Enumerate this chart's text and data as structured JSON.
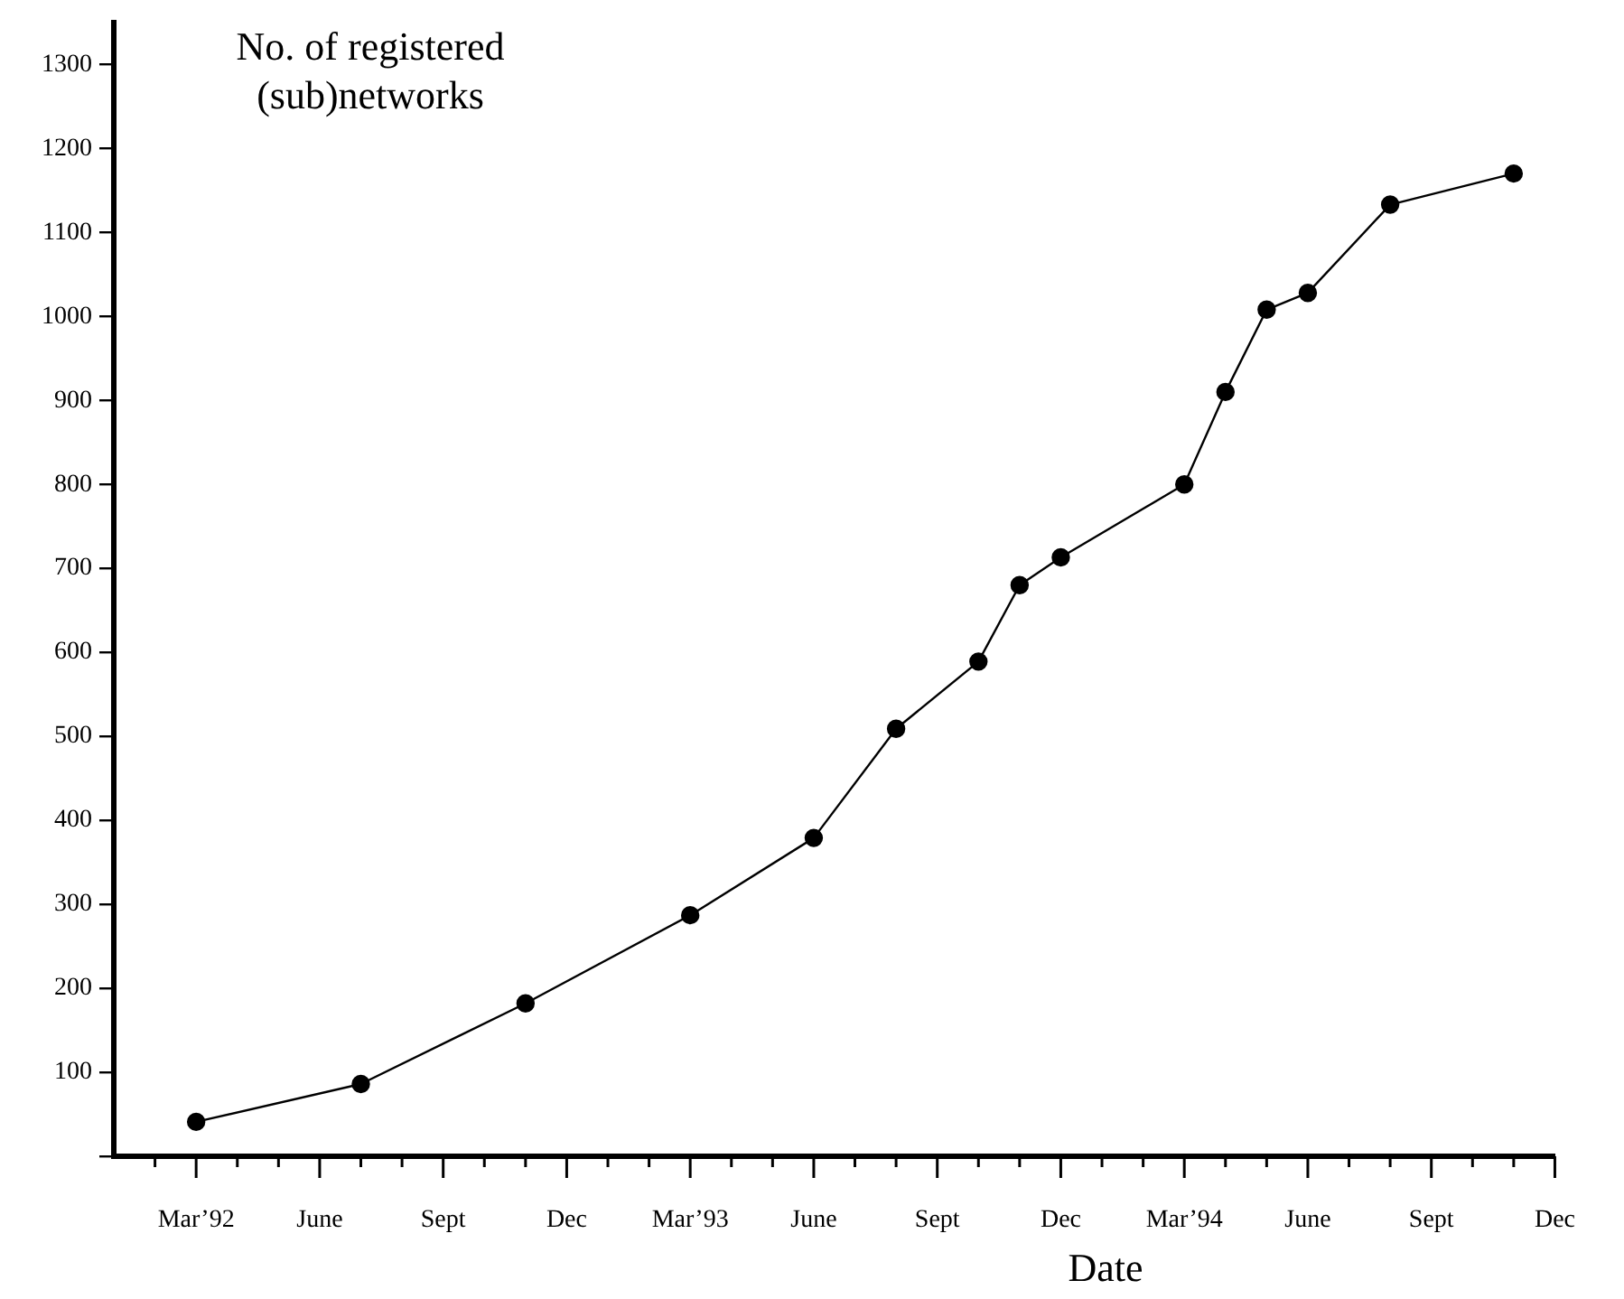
{
  "chart_data": {
    "type": "line",
    "ylabel": "No. of registered\n(sub)networks",
    "xlabel": "Date",
    "x": [
      "1992-03",
      "1992-07",
      "1992-11",
      "1993-03",
      "1993-06",
      "1993-08",
      "1993-10",
      "1993-11",
      "1993-12",
      "1994-03",
      "1994-04",
      "1994-05",
      "1994-06",
      "1994-08",
      "1994-11"
    ],
    "series": [
      {
        "color": "#000000",
        "values": [
          41,
          86,
          182,
          287,
          379,
          509,
          589,
          680,
          713,
          800,
          910,
          1008,
          1028,
          1133,
          1170
        ]
      }
    ],
    "xlim": [
      "1992-01",
      "1994-12"
    ],
    "xticks": [
      {
        "value": "1992-02",
        "label": null
      },
      {
        "value": "1992-03",
        "label": "Mar’92"
      },
      {
        "value": "1992-04",
        "label": null
      },
      {
        "value": "1992-05",
        "label": null
      },
      {
        "value": "1992-06",
        "label": "June"
      },
      {
        "value": "1992-07",
        "label": null
      },
      {
        "value": "1992-08",
        "label": null
      },
      {
        "value": "1992-09",
        "label": "Sept"
      },
      {
        "value": "1992-10",
        "label": null
      },
      {
        "value": "1992-11",
        "label": null
      },
      {
        "value": "1992-12",
        "label": "Dec"
      },
      {
        "value": "1993-01",
        "label": null
      },
      {
        "value": "1993-02",
        "label": null
      },
      {
        "value": "1993-03",
        "label": "Mar’93"
      },
      {
        "value": "1993-04",
        "label": null
      },
      {
        "value": "1993-05",
        "label": null
      },
      {
        "value": "1993-06",
        "label": "June"
      },
      {
        "value": "1993-07",
        "label": null
      },
      {
        "value": "1993-08",
        "label": null
      },
      {
        "value": "1993-09",
        "label": "Sept"
      },
      {
        "value": "1993-10",
        "label": null
      },
      {
        "value": "1993-11",
        "label": null
      },
      {
        "value": "1993-12",
        "label": "Dec"
      },
      {
        "value": "1994-01",
        "label": null
      },
      {
        "value": "1994-02",
        "label": null
      },
      {
        "value": "1994-03",
        "label": "Mar’94"
      },
      {
        "value": "1994-04",
        "label": null
      },
      {
        "value": "1994-05",
        "label": null
      },
      {
        "value": "1994-06",
        "label": "June"
      },
      {
        "value": "1994-07",
        "label": null
      },
      {
        "value": "1994-08",
        "label": null
      },
      {
        "value": "1994-09",
        "label": "Sept"
      },
      {
        "value": "1994-10",
        "label": null
      },
      {
        "value": "1994-11",
        "label": null
      },
      {
        "value": "1994-12",
        "label": "Dec"
      }
    ],
    "ylim": [
      0,
      1350
    ],
    "yticks": [
      {
        "value": 0,
        "label": null
      },
      100,
      200,
      300,
      400,
      500,
      600,
      700,
      800,
      900,
      1000,
      1100,
      1200,
      1300
    ],
    "grid": false,
    "legend": false,
    "marker": "circle",
    "line_style": "solid"
  }
}
